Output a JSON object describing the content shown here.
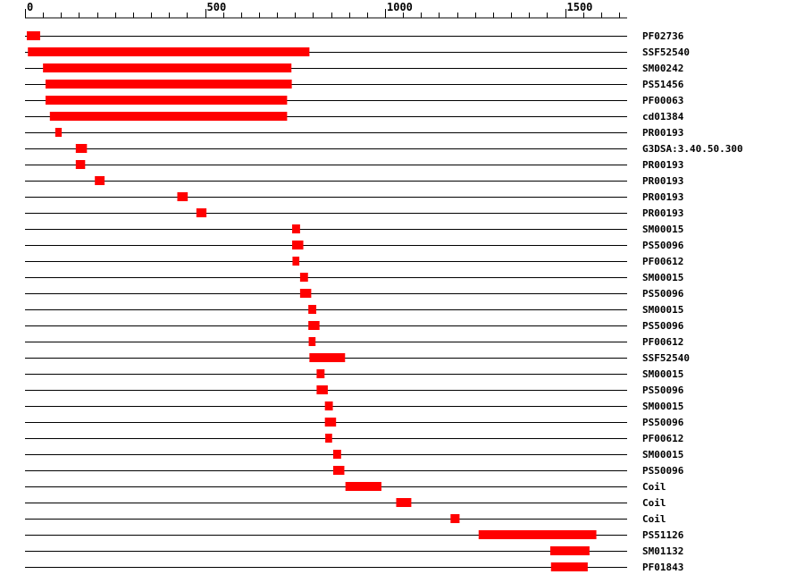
{
  "chart_data": {
    "type": "bar",
    "title": "",
    "xlabel": "",
    "ylabel": "",
    "xlim": [
      0,
      1650
    ],
    "x_ticks": [
      0,
      500,
      1000,
      1500
    ],
    "x_tick_labels": [
      "0",
      "500",
      "1000",
      "1500"
    ],
    "grid": false,
    "bar_color": "#ff0000",
    "rows": [
      {
        "label": "PF02736",
        "start": 5,
        "end": 42
      },
      {
        "label": "SSF52540",
        "start": 8,
        "end": 790
      },
      {
        "label": "SM00242",
        "start": 50,
        "end": 740
      },
      {
        "label": "PS51456",
        "start": 57,
        "end": 741
      },
      {
        "label": "PF00063",
        "start": 57,
        "end": 728
      },
      {
        "label": "cd01384",
        "start": 69,
        "end": 728
      },
      {
        "label": "PR00193",
        "start": 84,
        "end": 102
      },
      {
        "label": "G3DSA:3.40.50.300",
        "start": 141,
        "end": 172
      },
      {
        "label": "PR00193",
        "start": 141,
        "end": 167
      },
      {
        "label": "PR00193",
        "start": 194,
        "end": 221
      },
      {
        "label": "PR00193",
        "start": 423,
        "end": 452
      },
      {
        "label": "PR00193",
        "start": 476,
        "end": 504
      },
      {
        "label": "SM00015",
        "start": 742,
        "end": 764
      },
      {
        "label": "PS50096",
        "start": 742,
        "end": 773
      },
      {
        "label": "PF00612",
        "start": 743,
        "end": 762
      },
      {
        "label": "SM00015",
        "start": 764,
        "end": 786
      },
      {
        "label": "PS50096",
        "start": 764,
        "end": 795
      },
      {
        "label": "SM00015",
        "start": 787,
        "end": 809
      },
      {
        "label": "PS50096",
        "start": 787,
        "end": 818
      },
      {
        "label": "PF00612",
        "start": 788,
        "end": 807
      },
      {
        "label": "SSF52540",
        "start": 790,
        "end": 889
      },
      {
        "label": "SM00015",
        "start": 810,
        "end": 832
      },
      {
        "label": "PS50096",
        "start": 810,
        "end": 841
      },
      {
        "label": "SM00015",
        "start": 833,
        "end": 855
      },
      {
        "label": "PS50096",
        "start": 833,
        "end": 864
      },
      {
        "label": "PF00612",
        "start": 834,
        "end": 853
      },
      {
        "label": "SM00015",
        "start": 856,
        "end": 878
      },
      {
        "label": "PS50096",
        "start": 856,
        "end": 887
      },
      {
        "label": "Coil",
        "start": 890,
        "end": 990
      },
      {
        "label": "Coil",
        "start": 1031,
        "end": 1073
      },
      {
        "label": "Coil",
        "start": 1182,
        "end": 1207
      },
      {
        "label": "PS51126",
        "start": 1260,
        "end": 1587
      },
      {
        "label": "SM01132",
        "start": 1459,
        "end": 1568
      },
      {
        "label": "PF01843",
        "start": 1461,
        "end": 1563
      }
    ]
  }
}
